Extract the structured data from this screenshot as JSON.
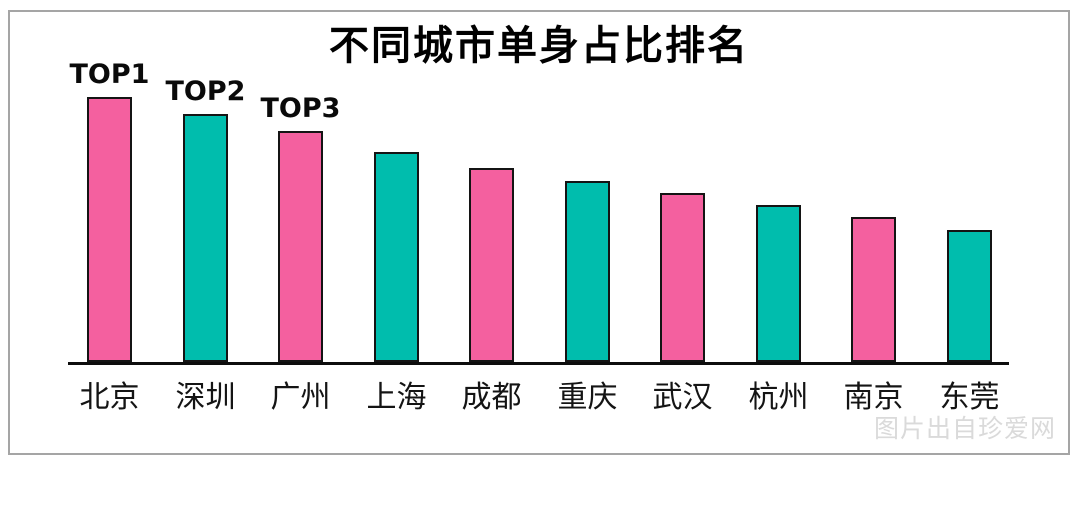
{
  "title": "不同城市单身占比排名",
  "watermark": "图片出自珍爱网",
  "colors": {
    "pink": "#f4609f",
    "teal": "#00bdad",
    "bar_border": "#141414",
    "axis": "#0d0d0d",
    "title_text": "#000000",
    "watermark_text": "#dadada",
    "frame_border": "#a5a5a5",
    "background": "#ffffff"
  },
  "chart_data": {
    "type": "bar",
    "title": "不同城市单身占比排名",
    "xlabel": "",
    "ylabel": "",
    "ylim": [
      0,
      100
    ],
    "grid": false,
    "legend": false,
    "value_note": "no numeric axis or data labels shown; values are relative bar heights estimated from pixels, max = 100",
    "categories": [
      "北京",
      "深圳",
      "广州",
      "上海",
      "成都",
      "重庆",
      "武汉",
      "杭州",
      "南京",
      "东莞"
    ],
    "values": [
      100,
      93.6,
      87.2,
      79.2,
      73.2,
      68.3,
      63.8,
      59.2,
      54.7,
      49.8
    ],
    "bar_colors": [
      "pink",
      "teal",
      "pink",
      "teal",
      "pink",
      "teal",
      "pink",
      "teal",
      "pink",
      "teal"
    ],
    "annotations": [
      {
        "category": "北京",
        "text": "TOP1"
      },
      {
        "category": "深圳",
        "text": "TOP2"
      },
      {
        "category": "广州",
        "text": "TOP3"
      }
    ]
  }
}
